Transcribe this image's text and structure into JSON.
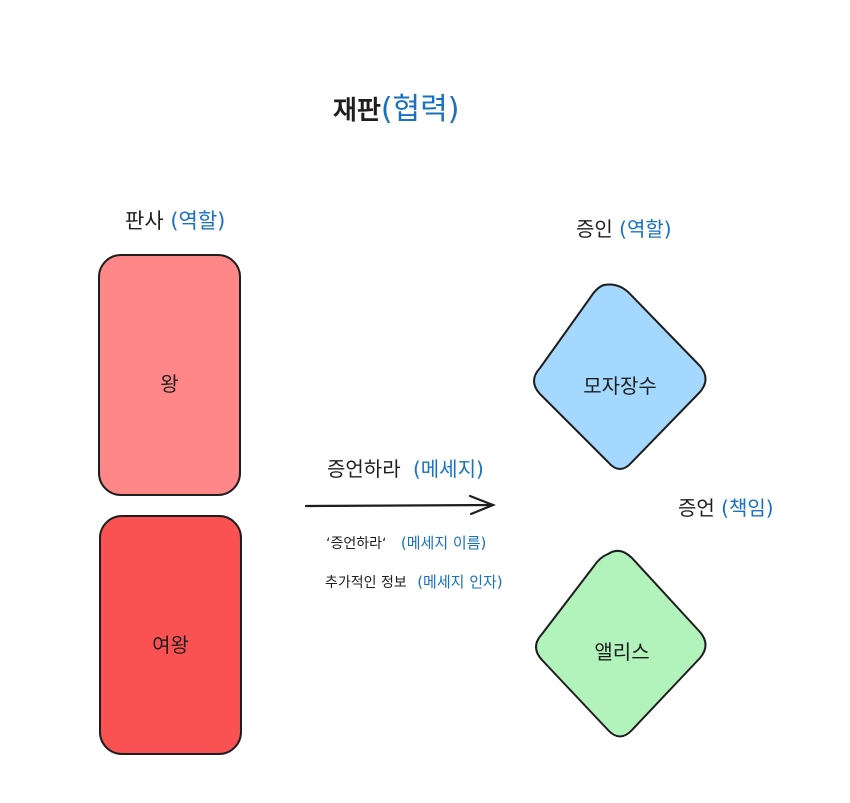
{
  "title": {
    "text": "재판",
    "note": "(협력)"
  },
  "judge_role": {
    "text": "판사",
    "note": "(역할)"
  },
  "witness_role": {
    "text": "증인",
    "note": "(역할)"
  },
  "cards": [
    {
      "label": "왕",
      "color": "#ff8787"
    },
    {
      "label": "여왕",
      "color": "#fa5252"
    }
  ],
  "diamonds": [
    {
      "label": "모자장수",
      "color": "#a5d8ff"
    },
    {
      "label": "앨리스",
      "color": "#b2f2bb"
    }
  ],
  "message": {
    "text": "증언하라",
    "note": "(메세지)",
    "name_text": "‘증언하라‘",
    "name_note": "(메세지 이름)",
    "arg_text": "추가적인 정보",
    "arg_note": "(메세지 인자)"
  },
  "responsibility": {
    "text": "증언",
    "note": "(책임)"
  },
  "colors": {
    "stroke": "#1e1e1e",
    "accent": "#1971c2"
  }
}
